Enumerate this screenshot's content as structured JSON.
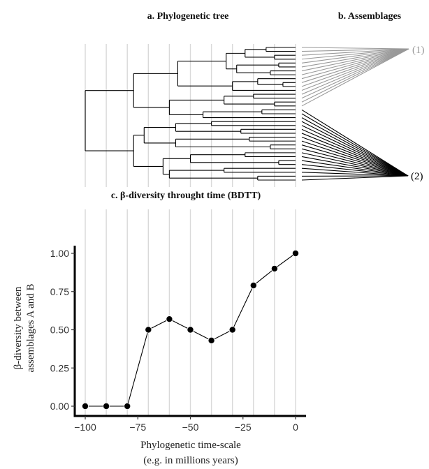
{
  "panels": {
    "tree_title": "a. Phylogenetic tree",
    "assemblages_title": "b. Assemblages",
    "bdtt_title": "c. β-diversity throught time (BDTT)"
  },
  "assemblages": {
    "label_1": "(1)",
    "label_2": "(2)",
    "color_1": "#999999",
    "color_2": "#000000"
  },
  "colors": {
    "grid": "#d9d9d9",
    "tree": "#000000",
    "line": "#000000",
    "axis": "#000000"
  },
  "chart_data": {
    "type": "line",
    "title": "c. β-diversity throught time (BDTT)",
    "xlabel_line1": "Phylogenetic time-scale",
    "xlabel_line2": "(e.g. in millions years)",
    "ylabel_line1": "β-diversity between",
    "ylabel_line2": "assemblages  A and B",
    "x": [
      -100,
      -90,
      -80,
      -70,
      -60,
      -50,
      -40,
      -30,
      -20,
      -10,
      0
    ],
    "y": [
      0.0,
      0.0,
      0.0,
      0.5,
      0.57,
      0.5,
      0.43,
      0.5,
      0.79,
      0.9,
      1.0
    ],
    "xlim": [
      -100,
      0
    ],
    "ylim": [
      0,
      1
    ],
    "x_ticks": [
      -100,
      -75,
      -50,
      -25,
      0
    ],
    "x_tick_labels": [
      "−100",
      "−75",
      "−50",
      "−25",
      "0"
    ],
    "y_ticks": [
      0,
      0.25,
      0.5,
      0.75,
      1.0
    ],
    "y_tick_labels": [
      "0.00",
      "0.25",
      "0.50",
      "0.75",
      "1.00"
    ],
    "grid": "vertical",
    "markers": "filled circles"
  }
}
